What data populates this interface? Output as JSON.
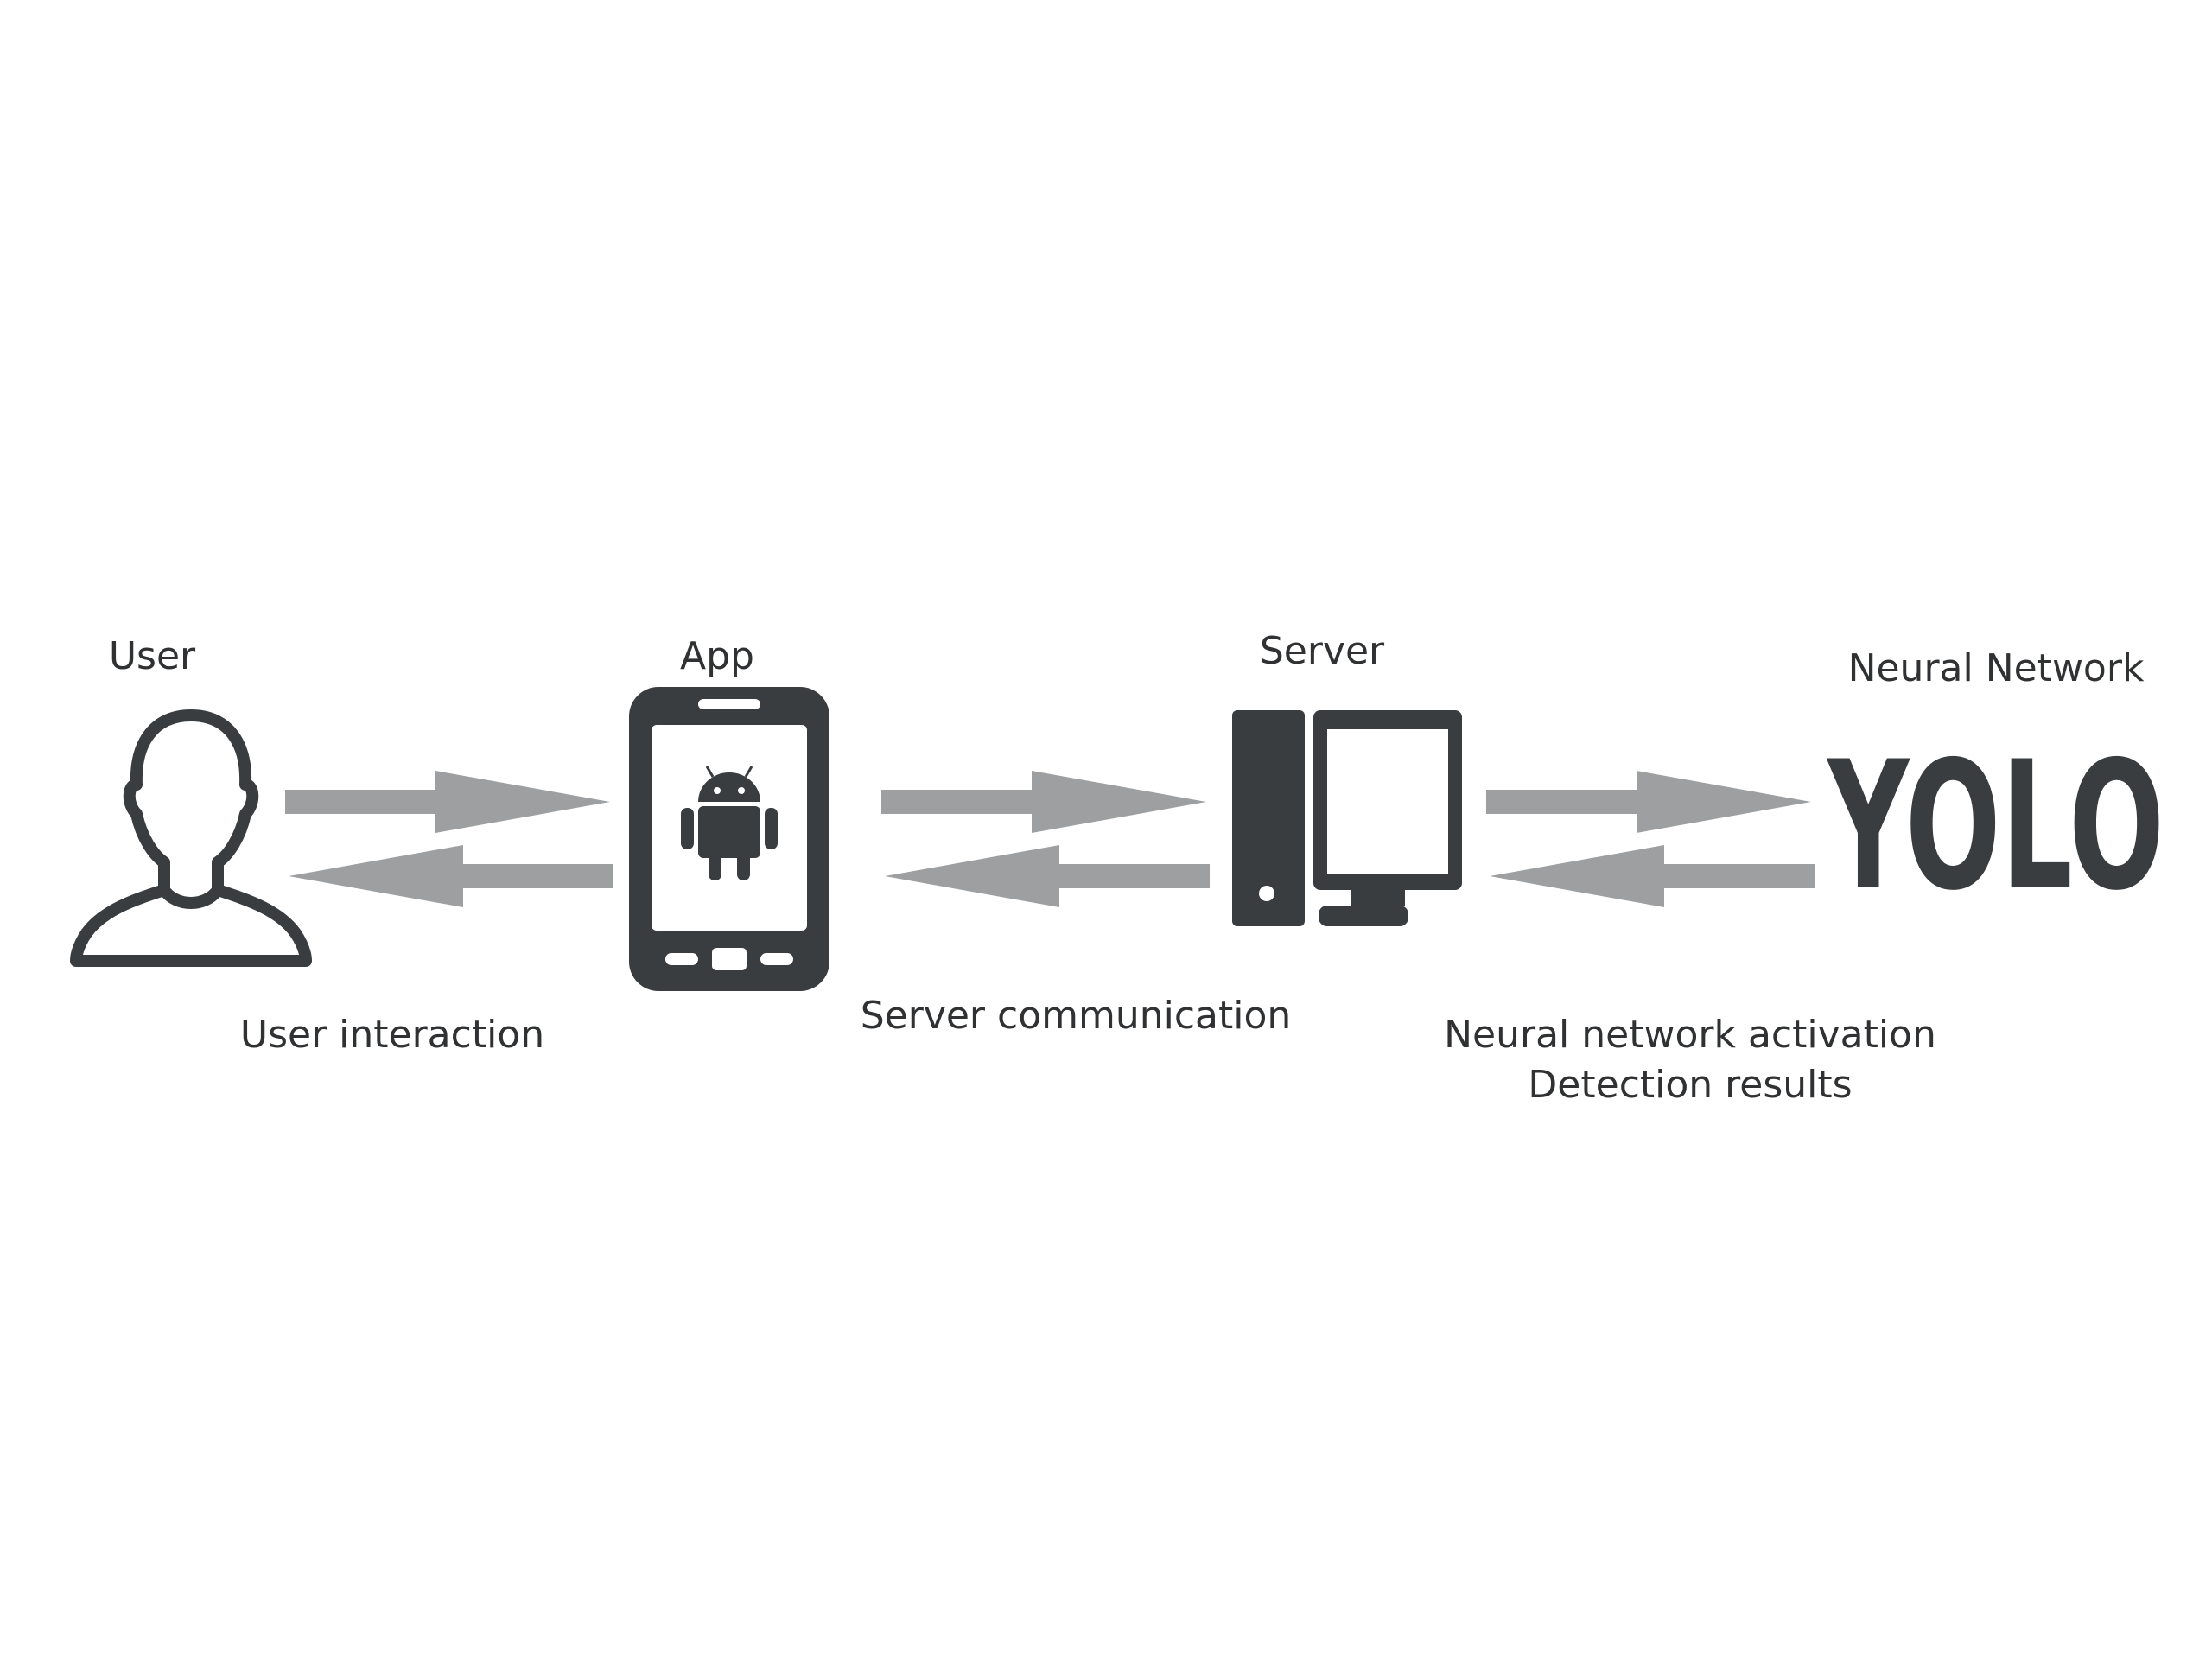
{
  "nodes": {
    "user": {
      "label": "User",
      "icon": "user-silhouette-icon"
    },
    "app": {
      "label": "App",
      "icon": "android-phone-icon"
    },
    "server": {
      "label": "Server",
      "icon": "desktop-computer-icon"
    },
    "neural": {
      "label": "Neural Network",
      "logo": "YOLO"
    }
  },
  "edges": {
    "user_app": {
      "label": "User interaction"
    },
    "app_server": {
      "label": "Server communication"
    },
    "server_neural": {
      "label_line1": "Neural network activation",
      "label_line2": "Detection results"
    }
  },
  "colors": {
    "icon": "#3a3d3f",
    "arrow": "#9d9fa1",
    "text": "#2f3133",
    "background": "#ffffff"
  }
}
